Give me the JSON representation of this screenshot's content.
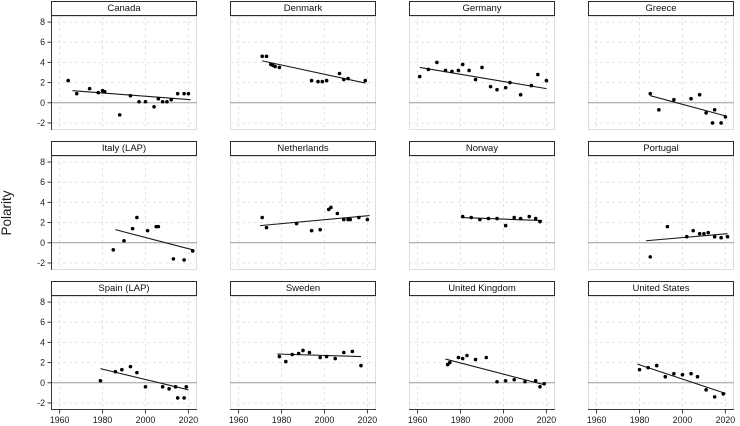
{
  "figure": {
    "ylabel": "Polarity",
    "background": "#ffffff",
    "colors": {
      "point": "#000000",
      "trend_line": "#1a1a1a",
      "zero_line": "#9c9c9c",
      "gridline": "#e4e4e4",
      "axis_line": "#3a3a3a",
      "strip_border": "#2b2b2b",
      "panel_border": "#dedede",
      "tick_text": "#1a1a1a"
    }
  },
  "chart_data": {
    "type": "scatter",
    "title": "",
    "xlabel": "",
    "ylabel": "Polarity",
    "x_ticks": [
      1960,
      1980,
      2000,
      2020
    ],
    "y_ticks": [
      8,
      6,
      4,
      2,
      0,
      -2
    ],
    "x_range": [
      1956,
      2024
    ],
    "y_range": [
      -2.7,
      8.6
    ],
    "grid": "dashed",
    "zero_reference_line": true,
    "layout": {
      "rows": 3,
      "cols": 4
    },
    "facets": [
      {
        "title": "Canada",
        "points": [
          [
            1964,
            2.2
          ],
          [
            1968,
            0.9
          ],
          [
            1974,
            1.4
          ],
          [
            1978,
            1.0
          ],
          [
            1980,
            1.2
          ],
          [
            1981,
            1.1
          ],
          [
            1988,
            -1.2
          ],
          [
            1993,
            0.7
          ],
          [
            1997,
            0.1
          ],
          [
            2000,
            0.1
          ],
          [
            2004,
            -0.4
          ],
          [
            2006,
            0.4
          ],
          [
            2008,
            0.1
          ],
          [
            2010,
            0.1
          ],
          [
            2012,
            0.3
          ],
          [
            2015,
            0.9
          ],
          [
            2018,
            0.9
          ],
          [
            2020,
            0.9
          ]
        ],
        "trend": {
          "x1": 1966,
          "y1": 1.2,
          "x2": 2021,
          "y2": 0.3
        }
      },
      {
        "title": "Denmark",
        "points": [
          [
            1971,
            4.6
          ],
          [
            1973,
            4.6
          ],
          [
            1975,
            3.8
          ],
          [
            1976,
            3.7
          ],
          [
            1977,
            3.6
          ],
          [
            1979,
            3.5
          ],
          [
            1994,
            2.2
          ],
          [
            1997,
            2.1
          ],
          [
            1999,
            2.1
          ],
          [
            2001,
            2.2
          ],
          [
            2007,
            2.9
          ],
          [
            2009,
            2.3
          ],
          [
            2011,
            2.4
          ],
          [
            2019,
            2.2
          ]
        ],
        "trend": {
          "x1": 1971,
          "y1": 4.15,
          "x2": 2019,
          "y2": 1.95
        }
      },
      {
        "title": "Germany",
        "points": [
          [
            1961,
            2.6
          ],
          [
            1965,
            3.3
          ],
          [
            1969,
            4.0
          ],
          [
            1973,
            3.2
          ],
          [
            1976,
            3.1
          ],
          [
            1979,
            3.2
          ],
          [
            1981,
            3.8
          ],
          [
            1984,
            3.2
          ],
          [
            1987,
            2.3
          ],
          [
            1990,
            3.5
          ],
          [
            1994,
            1.6
          ],
          [
            1997,
            1.3
          ],
          [
            2001,
            1.5
          ],
          [
            2003,
            2.0
          ],
          [
            2008,
            0.8
          ],
          [
            2013,
            1.7
          ],
          [
            2016,
            2.8
          ],
          [
            2020,
            2.2
          ]
        ],
        "trend": {
          "x1": 1961,
          "y1": 3.5,
          "x2": 2020,
          "y2": 1.4
        }
      },
      {
        "title": "Greece",
        "points": [
          [
            1985,
            0.9
          ],
          [
            1989,
            -0.7
          ],
          [
            1996,
            0.3
          ],
          [
            2004,
            0.4
          ],
          [
            2008,
            0.8
          ],
          [
            2011,
            -1.0
          ],
          [
            2014,
            -2.0
          ],
          [
            2015,
            -0.7
          ],
          [
            2018,
            -2.0
          ],
          [
            2020,
            -1.4
          ]
        ],
        "trend": {
          "x1": 1985,
          "y1": 0.7,
          "x2": 2020,
          "y2": -1.3
        }
      },
      {
        "title": "Italy (LAP)",
        "points": [
          [
            1985,
            -0.7
          ],
          [
            1990,
            0.2
          ],
          [
            1994,
            1.4
          ],
          [
            1996,
            2.5
          ],
          [
            2001,
            1.2
          ],
          [
            2005,
            1.6
          ],
          [
            2006,
            1.6
          ],
          [
            2013,
            -1.6
          ],
          [
            2018,
            -1.7
          ],
          [
            2022,
            -0.8
          ]
        ],
        "trend": {
          "x1": 1986,
          "y1": 1.3,
          "x2": 2022,
          "y2": -0.7
        }
      },
      {
        "title": "Netherlands",
        "points": [
          [
            1971,
            2.5
          ],
          [
            1973,
            1.5
          ],
          [
            1987,
            1.9
          ],
          [
            1994,
            1.2
          ],
          [
            1998,
            1.3
          ],
          [
            2002,
            3.3
          ],
          [
            2003,
            3.5
          ],
          [
            2006,
            2.9
          ],
          [
            2009,
            2.3
          ],
          [
            2011,
            2.3
          ],
          [
            2012,
            2.3
          ],
          [
            2016,
            2.5
          ],
          [
            2020,
            2.3
          ]
        ],
        "trend": {
          "x1": 1970,
          "y1": 1.7,
          "x2": 2021,
          "y2": 2.7
        }
      },
      {
        "title": "Norway",
        "points": [
          [
            1981,
            2.6
          ],
          [
            1985,
            2.5
          ],
          [
            1989,
            2.3
          ],
          [
            1993,
            2.4
          ],
          [
            1997,
            2.4
          ],
          [
            2001,
            1.7
          ],
          [
            2005,
            2.5
          ],
          [
            2008,
            2.4
          ],
          [
            2012,
            2.6
          ],
          [
            2015,
            2.4
          ],
          [
            2017,
            2.1
          ]
        ],
        "trend": {
          "x1": 1981,
          "y1": 2.5,
          "x2": 2018,
          "y2": 2.2
        }
      },
      {
        "title": "Portugal",
        "points": [
          [
            1985,
            -1.4
          ],
          [
            1993,
            1.6
          ],
          [
            2002,
            0.6
          ],
          [
            2005,
            1.2
          ],
          [
            2008,
            0.9
          ],
          [
            2010,
            0.9
          ],
          [
            2012,
            1.0
          ],
          [
            2015,
            0.6
          ],
          [
            2018,
            0.5
          ],
          [
            2021,
            0.6
          ]
        ],
        "trend": {
          "x1": 1983,
          "y1": 0.2,
          "x2": 2021,
          "y2": 0.9
        }
      },
      {
        "title": "Spain (LAP)",
        "points": [
          [
            1979,
            0.2
          ],
          [
            1986,
            1.1
          ],
          [
            1989,
            1.3
          ],
          [
            1993,
            1.6
          ],
          [
            1996,
            1.0
          ],
          [
            2000,
            -0.4
          ],
          [
            2008,
            -0.4
          ],
          [
            2011,
            -0.6
          ],
          [
            2014,
            -0.4
          ],
          [
            2015,
            -1.5
          ],
          [
            2018,
            -1.5
          ],
          [
            2019,
            -0.4
          ]
        ],
        "trend": {
          "x1": 1979,
          "y1": 1.4,
          "x2": 2020,
          "y2": -0.7
        }
      },
      {
        "title": "Sweden",
        "points": [
          [
            1979,
            2.6
          ],
          [
            1982,
            2.1
          ],
          [
            1985,
            2.8
          ],
          [
            1988,
            2.9
          ],
          [
            1990,
            3.2
          ],
          [
            1993,
            3.0
          ],
          [
            1998,
            2.5
          ],
          [
            2001,
            2.6
          ],
          [
            2005,
            2.4
          ],
          [
            2009,
            3.0
          ],
          [
            2013,
            3.1
          ],
          [
            2017,
            1.7
          ]
        ],
        "trend": {
          "x1": 1978,
          "y1": 2.85,
          "x2": 2017,
          "y2": 2.6
        }
      },
      {
        "title": "United Kingdom",
        "points": [
          [
            1974,
            1.8
          ],
          [
            1975,
            2.0
          ],
          [
            1979,
            2.5
          ],
          [
            1981,
            2.4
          ],
          [
            1983,
            2.7
          ],
          [
            1987,
            2.3
          ],
          [
            1992,
            2.5
          ],
          [
            1997,
            0.1
          ],
          [
            2001,
            0.2
          ],
          [
            2005,
            0.3
          ],
          [
            2010,
            0.1
          ],
          [
            2015,
            0.2
          ],
          [
            2017,
            -0.4
          ],
          [
            2019,
            -0.1
          ]
        ],
        "trend": {
          "x1": 1973,
          "y1": 2.35,
          "x2": 2019,
          "y2": -0.2
        }
      },
      {
        "title": "United States",
        "points": [
          [
            1980,
            1.3
          ],
          [
            1984,
            1.5
          ],
          [
            1988,
            1.7
          ],
          [
            1992,
            0.6
          ],
          [
            1996,
            0.9
          ],
          [
            2000,
            0.8
          ],
          [
            2004,
            0.9
          ],
          [
            2007,
            0.6
          ],
          [
            2011,
            -0.7
          ],
          [
            2015,
            -1.4
          ],
          [
            2019,
            -1.1
          ]
        ],
        "trend": {
          "x1": 1979,
          "y1": 1.85,
          "x2": 2020,
          "y2": -1.05
        }
      }
    ]
  }
}
